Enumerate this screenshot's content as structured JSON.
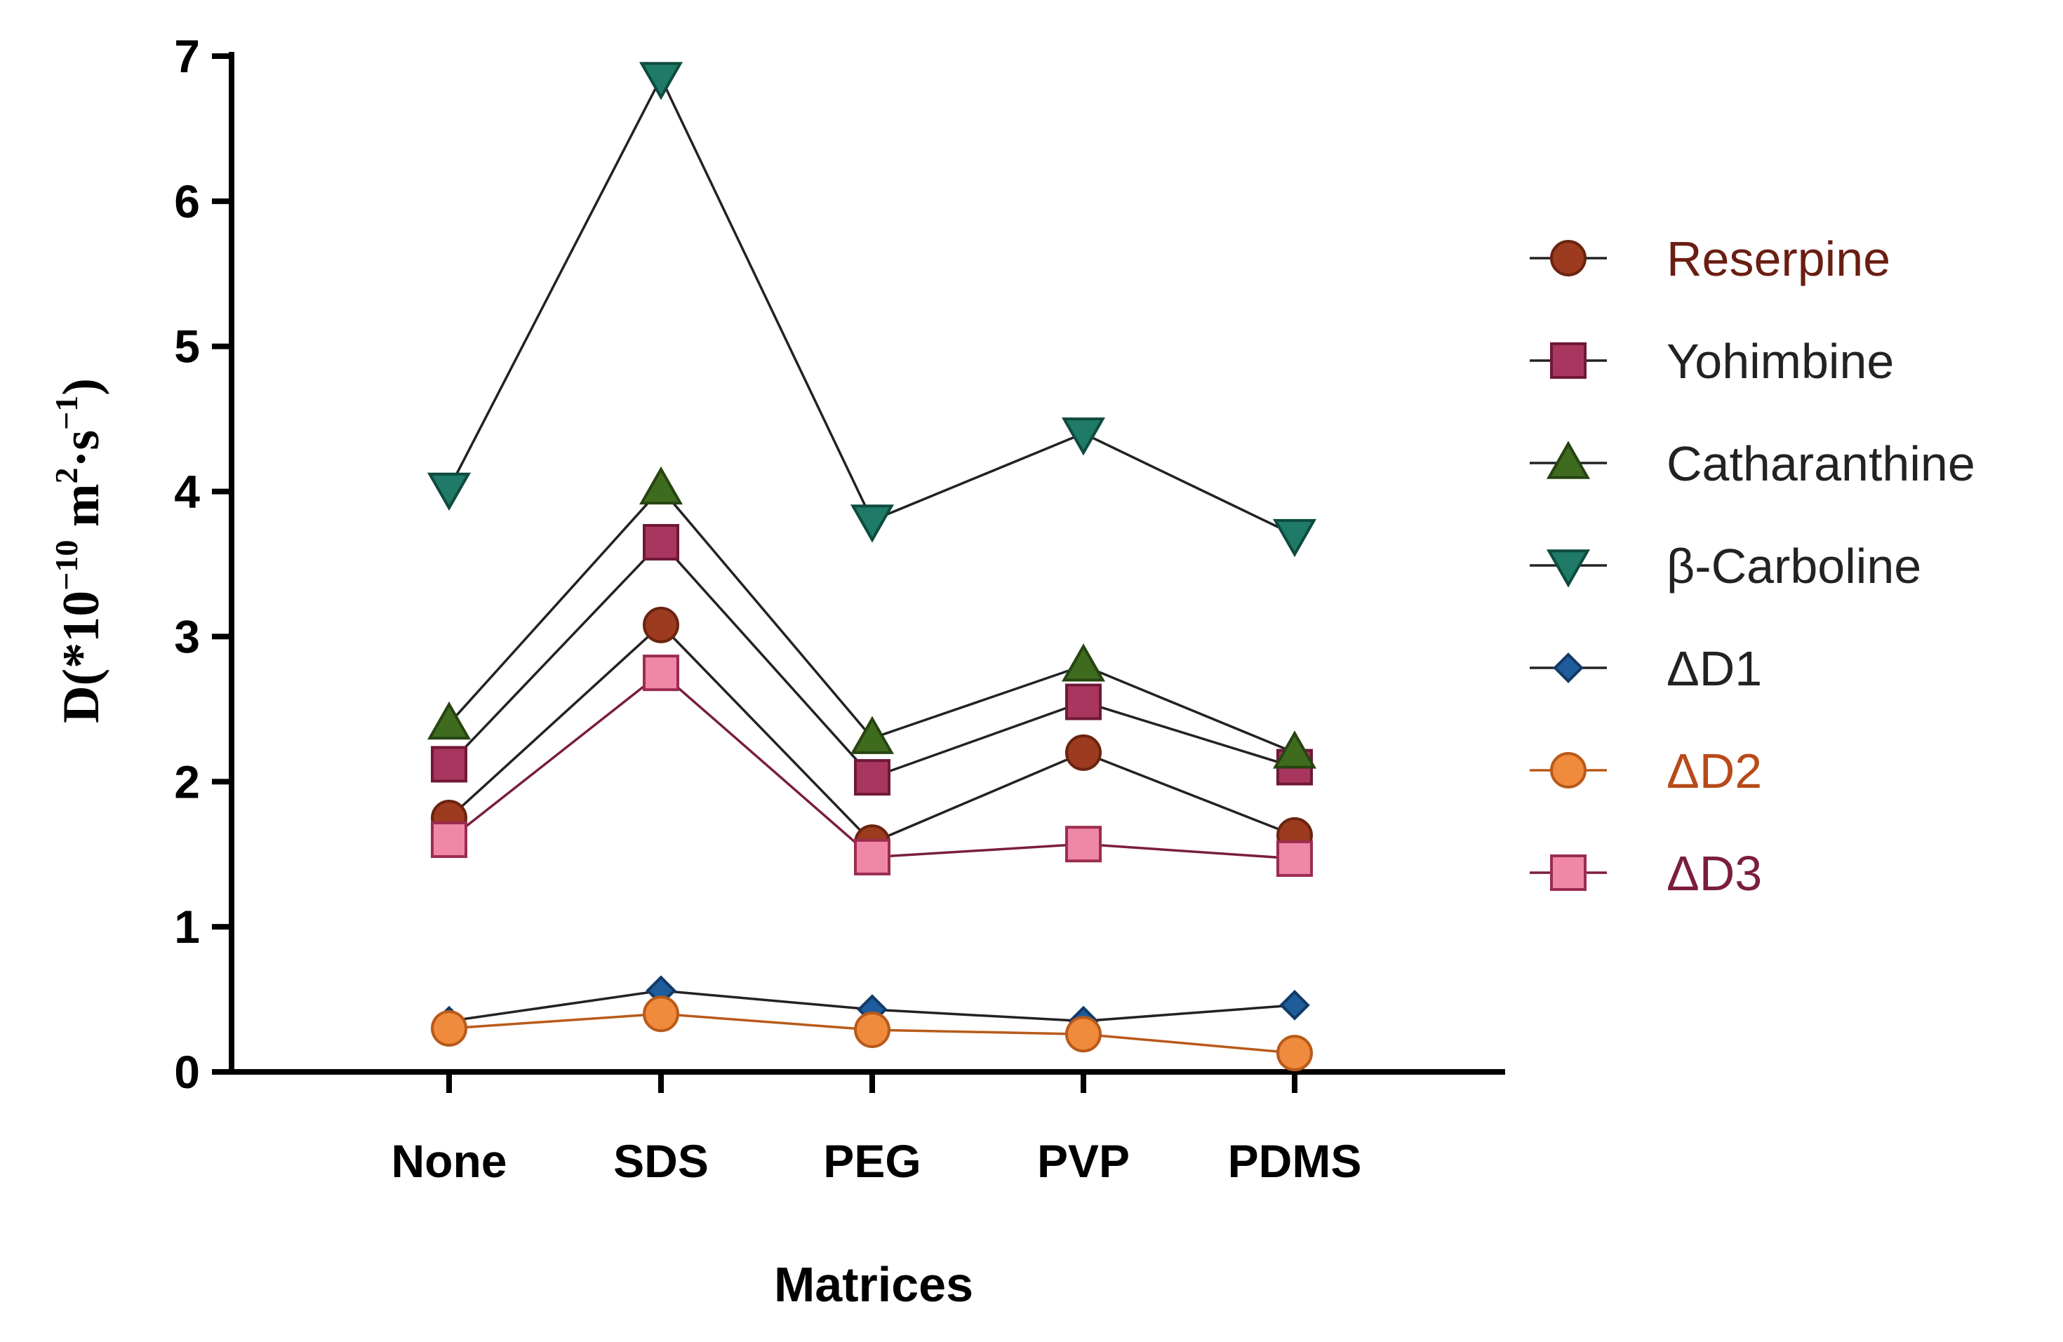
{
  "chart_data": {
    "type": "line",
    "title": "",
    "xlabel": "Matrices",
    "ylabel": {
      "prefix": "D(*10",
      "exp1": "−10",
      "mid1": " m",
      "exp2": "2",
      "mid2": "·s",
      "exp3": "−1",
      "suffix": ")"
    },
    "categories": [
      "None",
      "SDS",
      "PEG",
      "PVP",
      "PDMS"
    ],
    "ylim": [
      0,
      7
    ],
    "yticks": [
      "0",
      "1",
      "2",
      "3",
      "4",
      "5",
      "6",
      "7"
    ],
    "grid": false,
    "legend_position": "right",
    "series": [
      {
        "name": "Reserpine",
        "marker": "circle",
        "color": "#9c3b1f",
        "edge": "#6a2410",
        "line": "#222222",
        "label_color": "#6a1e12",
        "values": [
          1.75,
          3.08,
          1.58,
          2.2,
          1.63
        ]
      },
      {
        "name": "Yohimbine",
        "marker": "square",
        "color": "#a8365e",
        "edge": "#701838",
        "line": "#222222",
        "label_color": "#222222",
        "values": [
          2.12,
          3.65,
          2.03,
          2.55,
          2.1
        ]
      },
      {
        "name": "Catharanthine",
        "marker": "triangle-up",
        "color": "#3f6b1f",
        "edge": "#274412",
        "line": "#222222",
        "label_color": "#222222",
        "values": [
          2.4,
          4.02,
          2.3,
          2.8,
          2.2
        ]
      },
      {
        "name": "β-Carboline",
        "marker": "triangle-down",
        "color": "#1f7a68",
        "edge": "#0f4a3f",
        "line": "#222222",
        "label_color": "#222222",
        "values": [
          4.02,
          6.85,
          3.8,
          4.4,
          3.7
        ]
      },
      {
        "name": "ΔD1",
        "marker": "diamond",
        "color": "#1f5c9c",
        "edge": "#123a66",
        "line": "#222222",
        "label_color": "#222222",
        "values": [
          0.35,
          0.56,
          0.43,
          0.35,
          0.46
        ]
      },
      {
        "name": "ΔD2",
        "marker": "circle",
        "color": "#f08a3c",
        "edge": "#b85a1a",
        "line": "#b85a1a",
        "label_color": "#b84a1a",
        "values": [
          0.3,
          0.4,
          0.29,
          0.26,
          0.13
        ]
      },
      {
        "name": "ΔD3",
        "marker": "square",
        "color": "#ef87a6",
        "edge": "#9c2c50",
        "line": "#7a1e3c",
        "label_color": "#7a1e3c",
        "values": [
          1.6,
          2.75,
          1.48,
          1.57,
          1.47
        ]
      }
    ]
  }
}
